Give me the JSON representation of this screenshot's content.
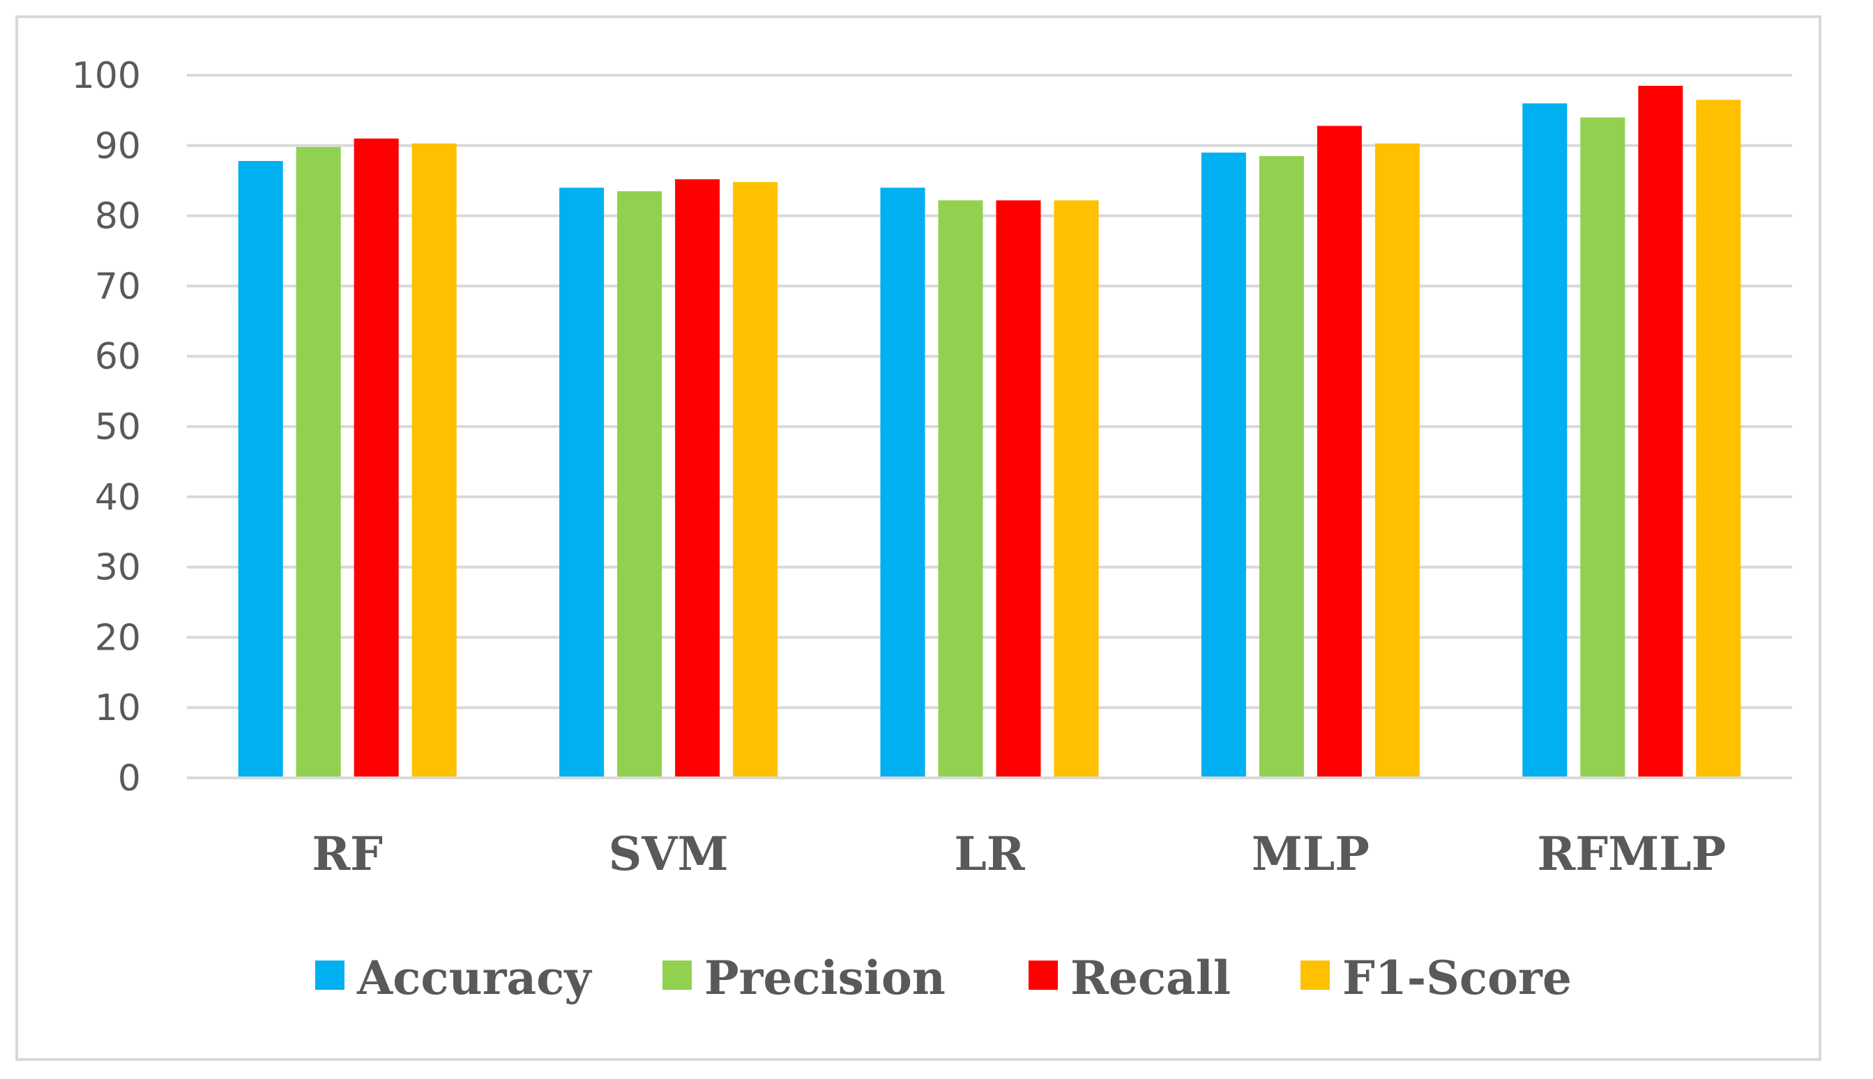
{
  "chart_data": {
    "type": "bar",
    "title": "",
    "xlabel": "",
    "ylabel": "",
    "ylim": [
      0,
      100
    ],
    "yticks": [
      0,
      10,
      20,
      30,
      40,
      50,
      60,
      70,
      80,
      90,
      100
    ],
    "grid": true,
    "legend_position": "bottom",
    "categories": [
      "RF",
      "SVM",
      "LR",
      "MLP",
      "RFMLP"
    ],
    "series": [
      {
        "name": "Accuracy",
        "color": "#00b0f0",
        "values": [
          87.8,
          84.0,
          84.0,
          89.0,
          96.0
        ]
      },
      {
        "name": "Precision",
        "color": "#92d050",
        "values": [
          89.8,
          83.5,
          82.2,
          88.5,
          94.0
        ]
      },
      {
        "name": "Recall",
        "color": "#ff0000",
        "values": [
          91.0,
          85.2,
          82.2,
          92.8,
          98.5
        ]
      },
      {
        "name": "F1-Score",
        "color": "#ffc000",
        "values": [
          90.3,
          84.8,
          82.2,
          90.3,
          96.5
        ]
      }
    ]
  }
}
